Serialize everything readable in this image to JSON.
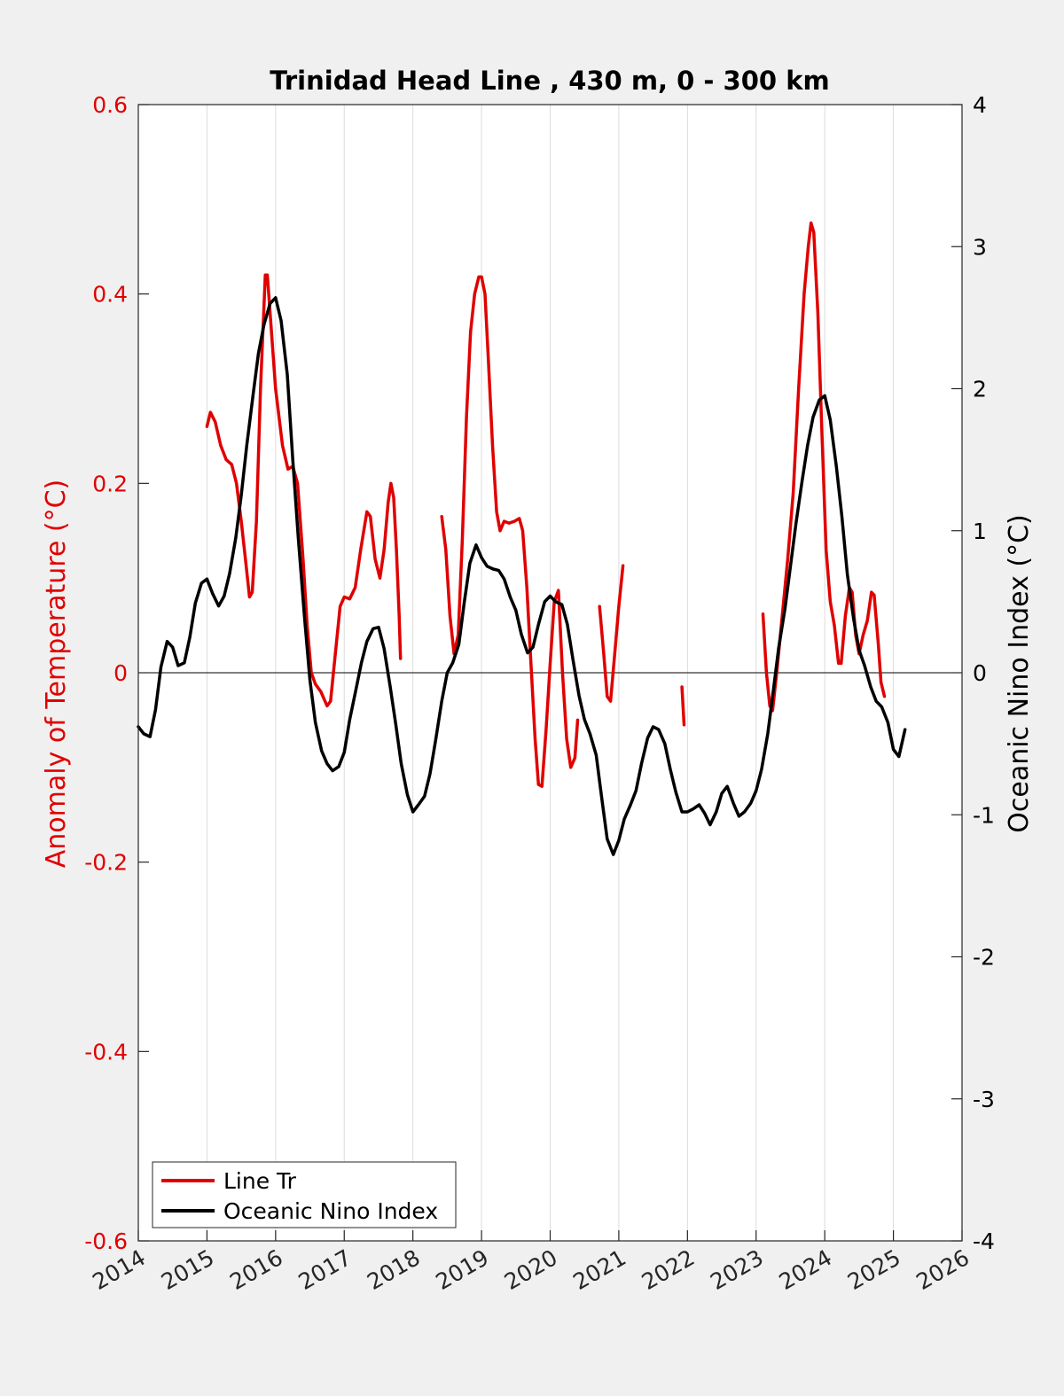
{
  "chart_data": {
    "type": "line",
    "title": "Trinidad Head Line , 430 m, 0 - 300 km",
    "xlabel": "",
    "ylabel_left": "Anomaly of Temperature (°C)",
    "ylabel_right": "Oceanic Nino Index (°C)",
    "xlim": [
      2014,
      2026
    ],
    "ylim_left": [
      -0.6,
      0.6
    ],
    "ylim_right": [
      -4,
      4
    ],
    "x_ticks": [
      "2014",
      "2015",
      "2016",
      "2017",
      "2018",
      "2019",
      "2020",
      "2021",
      "2022",
      "2023",
      "2024",
      "2025",
      "2026"
    ],
    "y_ticks_left": [
      "0.6",
      "0.4",
      "0.2",
      "0",
      "-0.2",
      "-0.4",
      "-0.6"
    ],
    "y_ticks_right": [
      "4",
      "3",
      "2",
      "1",
      "0",
      "-1",
      "-2",
      "-3",
      "-4"
    ],
    "grid": "vertical",
    "legend_position": "bottom-left",
    "colors": {
      "left_axis": "#e00000",
      "series_line_tr": "#e00000",
      "series_oni": "#000000",
      "zero_line": "#000000"
    },
    "series": [
      {
        "name": "Line Tr",
        "axis": "left",
        "color": "#e00000",
        "segments": [
          [
            [
              2015.0,
              0.26
            ],
            [
              2015.05,
              0.275
            ],
            [
              2015.12,
              0.265
            ],
            [
              2015.2,
              0.24
            ],
            [
              2015.28,
              0.225
            ],
            [
              2015.36,
              0.22
            ],
            [
              2015.43,
              0.2
            ],
            [
              2015.5,
              0.16
            ],
            [
              2015.56,
              0.12
            ],
            [
              2015.62,
              0.08
            ],
            [
              2015.66,
              0.085
            ],
            [
              2015.72,
              0.16
            ],
            [
              2015.78,
              0.3
            ],
            [
              2015.85,
              0.42
            ],
            [
              2015.88,
              0.42
            ],
            [
              2015.93,
              0.37
            ],
            [
              2016.0,
              0.3
            ],
            [
              2016.1,
              0.24
            ],
            [
              2016.18,
              0.215
            ],
            [
              2016.25,
              0.218
            ],
            [
              2016.32,
              0.2
            ],
            [
              2016.4,
              0.12
            ],
            [
              2016.46,
              0.05
            ],
            [
              2016.52,
              0.0
            ],
            [
              2016.58,
              -0.012
            ],
            [
              2016.66,
              -0.02
            ],
            [
              2016.75,
              -0.035
            ],
            [
              2016.8,
              -0.03
            ],
            [
              2016.87,
              0.02
            ],
            [
              2016.94,
              0.07
            ],
            [
              2017.0,
              0.08
            ],
            [
              2017.08,
              0.078
            ],
            [
              2017.16,
              0.09
            ],
            [
              2017.24,
              0.13
            ],
            [
              2017.33,
              0.17
            ],
            [
              2017.38,
              0.165
            ],
            [
              2017.45,
              0.12
            ],
            [
              2017.52,
              0.1
            ],
            [
              2017.58,
              0.13
            ],
            [
              2017.64,
              0.18
            ],
            [
              2017.68,
              0.2
            ],
            [
              2017.72,
              0.185
            ],
            [
              2017.76,
              0.13
            ],
            [
              2017.8,
              0.06
            ],
            [
              2017.82,
              0.015
            ]
          ],
          [
            [
              2018.42,
              0.165
            ],
            [
              2018.48,
              0.13
            ],
            [
              2018.54,
              0.06
            ],
            [
              2018.6,
              0.02
            ],
            [
              2018.66,
              0.04
            ],
            [
              2018.72,
              0.14
            ],
            [
              2018.78,
              0.27
            ],
            [
              2018.84,
              0.36
            ],
            [
              2018.9,
              0.4
            ],
            [
              2018.96,
              0.418
            ],
            [
              2019.0,
              0.418
            ],
            [
              2019.05,
              0.4
            ],
            [
              2019.1,
              0.33
            ],
            [
              2019.16,
              0.24
            ],
            [
              2019.22,
              0.17
            ],
            [
              2019.27,
              0.15
            ],
            [
              2019.33,
              0.16
            ],
            [
              2019.4,
              0.158
            ],
            [
              2019.48,
              0.16
            ],
            [
              2019.55,
              0.163
            ],
            [
              2019.6,
              0.15
            ],
            [
              2019.66,
              0.09
            ],
            [
              2019.72,
              0.01
            ],
            [
              2019.78,
              -0.07
            ],
            [
              2019.83,
              -0.118
            ],
            [
              2019.88,
              -0.12
            ],
            [
              2019.94,
              -0.06
            ],
            [
              2020.0,
              0.01
            ],
            [
              2020.06,
              0.075
            ],
            [
              2020.12,
              0.087
            ],
            [
              2020.18,
              0.0
            ],
            [
              2020.24,
              -0.07
            ],
            [
              2020.3,
              -0.1
            ],
            [
              2020.36,
              -0.09
            ],
            [
              2020.4,
              -0.05
            ]
          ],
          [
            [
              2020.72,
              0.07
            ],
            [
              2020.78,
              0.02
            ],
            [
              2020.83,
              -0.025
            ],
            [
              2020.88,
              -0.03
            ],
            [
              2020.94,
              0.02
            ],
            [
              2021.0,
              0.07
            ],
            [
              2021.06,
              0.113
            ]
          ],
          [
            [
              2021.92,
              -0.015
            ],
            [
              2021.95,
              -0.055
            ]
          ],
          [
            [
              2023.1,
              0.062
            ],
            [
              2023.15,
              0.0
            ],
            [
              2023.2,
              -0.035
            ],
            [
              2023.24,
              -0.04
            ],
            [
              2023.3,
              0.0
            ],
            [
              2023.38,
              0.06
            ],
            [
              2023.46,
              0.12
            ],
            [
              2023.54,
              0.19
            ],
            [
              2023.62,
              0.3
            ],
            [
              2023.7,
              0.4
            ],
            [
              2023.76,
              0.45
            ],
            [
              2023.8,
              0.475
            ],
            [
              2023.84,
              0.465
            ],
            [
              2023.9,
              0.38
            ],
            [
              2023.96,
              0.25
            ],
            [
              2024.02,
              0.13
            ],
            [
              2024.08,
              0.075
            ],
            [
              2024.14,
              0.05
            ],
            [
              2024.2,
              0.01
            ],
            [
              2024.24,
              0.01
            ],
            [
              2024.3,
              0.06
            ],
            [
              2024.36,
              0.09
            ],
            [
              2024.4,
              0.085
            ],
            [
              2024.45,
              0.04
            ],
            [
              2024.5,
              0.02
            ],
            [
              2024.56,
              0.04
            ],
            [
              2024.62,
              0.055
            ],
            [
              2024.68,
              0.085
            ],
            [
              2024.72,
              0.082
            ],
            [
              2024.78,
              0.03
            ],
            [
              2024.82,
              -0.01
            ],
            [
              2024.87,
              -0.025
            ]
          ]
        ]
      },
      {
        "name": "Oceanic Nino Index",
        "axis": "right",
        "color": "#000000",
        "segments": [
          [
            [
              2014.0,
              -0.38
            ],
            [
              2014.08,
              -0.43
            ],
            [
              2014.17,
              -0.45
            ],
            [
              2014.25,
              -0.26
            ],
            [
              2014.33,
              0.04
            ],
            [
              2014.42,
              0.22
            ],
            [
              2014.5,
              0.18
            ],
            [
              2014.58,
              0.05
            ],
            [
              2014.67,
              0.07
            ],
            [
              2014.75,
              0.25
            ],
            [
              2014.83,
              0.49
            ],
            [
              2014.92,
              0.63
            ],
            [
              2015.0,
              0.66
            ],
            [
              2015.08,
              0.56
            ],
            [
              2015.17,
              0.47
            ],
            [
              2015.25,
              0.54
            ],
            [
              2015.33,
              0.7
            ],
            [
              2015.42,
              0.95
            ],
            [
              2015.5,
              1.25
            ],
            [
              2015.58,
              1.6
            ],
            [
              2015.67,
              1.95
            ],
            [
              2015.75,
              2.25
            ],
            [
              2015.83,
              2.45
            ],
            [
              2015.92,
              2.6
            ],
            [
              2016.0,
              2.64
            ],
            [
              2016.08,
              2.48
            ],
            [
              2016.17,
              2.1
            ],
            [
              2016.25,
              1.5
            ],
            [
              2016.33,
              0.95
            ],
            [
              2016.42,
              0.4
            ],
            [
              2016.5,
              -0.05
            ],
            [
              2016.58,
              -0.35
            ],
            [
              2016.67,
              -0.55
            ],
            [
              2016.75,
              -0.64
            ],
            [
              2016.83,
              -0.69
            ],
            [
              2016.92,
              -0.66
            ],
            [
              2017.0,
              -0.56
            ],
            [
              2017.08,
              -0.33
            ],
            [
              2017.17,
              -0.12
            ],
            [
              2017.25,
              0.07
            ],
            [
              2017.33,
              0.22
            ],
            [
              2017.42,
              0.31
            ],
            [
              2017.5,
              0.32
            ],
            [
              2017.58,
              0.17
            ],
            [
              2017.67,
              -0.1
            ],
            [
              2017.75,
              -0.36
            ],
            [
              2017.83,
              -0.64
            ],
            [
              2017.92,
              -0.86
            ],
            [
              2018.0,
              -0.98
            ],
            [
              2018.08,
              -0.93
            ],
            [
              2018.17,
              -0.87
            ],
            [
              2018.25,
              -0.71
            ],
            [
              2018.33,
              -0.48
            ],
            [
              2018.42,
              -0.2
            ],
            [
              2018.5,
              0.0
            ],
            [
              2018.58,
              0.07
            ],
            [
              2018.67,
              0.2
            ],
            [
              2018.75,
              0.5
            ],
            [
              2018.83,
              0.77
            ],
            [
              2018.92,
              0.9
            ],
            [
              2019.0,
              0.81
            ],
            [
              2019.08,
              0.75
            ],
            [
              2019.17,
              0.73
            ],
            [
              2019.25,
              0.72
            ],
            [
              2019.33,
              0.66
            ],
            [
              2019.42,
              0.53
            ],
            [
              2019.5,
              0.44
            ],
            [
              2019.58,
              0.27
            ],
            [
              2019.67,
              0.14
            ],
            [
              2019.75,
              0.18
            ],
            [
              2019.83,
              0.34
            ],
            [
              2019.92,
              0.5
            ],
            [
              2020.0,
              0.54
            ],
            [
              2020.08,
              0.5
            ],
            [
              2020.17,
              0.48
            ],
            [
              2020.25,
              0.34
            ],
            [
              2020.33,
              0.1
            ],
            [
              2020.42,
              -0.16
            ],
            [
              2020.5,
              -0.33
            ],
            [
              2020.58,
              -0.43
            ],
            [
              2020.67,
              -0.58
            ],
            [
              2020.75,
              -0.88
            ],
            [
              2020.83,
              -1.17
            ],
            [
              2020.92,
              -1.28
            ],
            [
              2021.0,
              -1.18
            ],
            [
              2021.08,
              -1.03
            ],
            [
              2021.17,
              -0.93
            ],
            [
              2021.25,
              -0.83
            ],
            [
              2021.33,
              -0.64
            ],
            [
              2021.42,
              -0.46
            ],
            [
              2021.5,
              -0.38
            ],
            [
              2021.58,
              -0.4
            ],
            [
              2021.67,
              -0.5
            ],
            [
              2021.75,
              -0.68
            ],
            [
              2021.83,
              -0.84
            ],
            [
              2021.92,
              -0.98
            ],
            [
              2022.0,
              -0.98
            ],
            [
              2022.08,
              -0.96
            ],
            [
              2022.17,
              -0.93
            ],
            [
              2022.25,
              -0.99
            ],
            [
              2022.33,
              -1.07
            ],
            [
              2022.42,
              -0.98
            ],
            [
              2022.5,
              -0.85
            ],
            [
              2022.58,
              -0.8
            ],
            [
              2022.67,
              -0.92
            ],
            [
              2022.75,
              -1.01
            ],
            [
              2022.83,
              -0.98
            ],
            [
              2022.92,
              -0.92
            ],
            [
              2023.0,
              -0.83
            ],
            [
              2023.08,
              -0.68
            ],
            [
              2023.17,
              -0.43
            ],
            [
              2023.25,
              -0.13
            ],
            [
              2023.33,
              0.18
            ],
            [
              2023.42,
              0.45
            ],
            [
              2023.5,
              0.75
            ],
            [
              2023.58,
              1.05
            ],
            [
              2023.67,
              1.35
            ],
            [
              2023.75,
              1.6
            ],
            [
              2023.83,
              1.8
            ],
            [
              2023.92,
              1.92
            ],
            [
              2024.0,
              1.95
            ],
            [
              2024.08,
              1.78
            ],
            [
              2024.17,
              1.45
            ],
            [
              2024.25,
              1.1
            ],
            [
              2024.33,
              0.69
            ],
            [
              2024.42,
              0.38
            ],
            [
              2024.5,
              0.16
            ],
            [
              2024.58,
              0.05
            ],
            [
              2024.67,
              -0.1
            ],
            [
              2024.75,
              -0.2
            ],
            [
              2024.83,
              -0.24
            ],
            [
              2024.92,
              -0.35
            ],
            [
              2025.0,
              -0.54
            ],
            [
              2025.08,
              -0.59
            ],
            [
              2025.17,
              -0.4
            ]
          ]
        ]
      }
    ]
  }
}
